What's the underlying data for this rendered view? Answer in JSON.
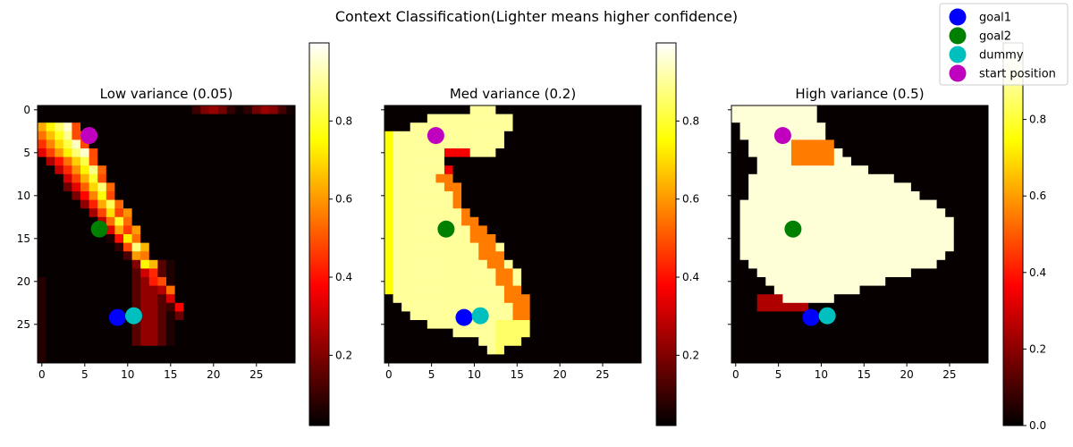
{
  "figure": {
    "suptitle": "Context Classification(Lighter means higher confidence)"
  },
  "legend": {
    "placement": "top-right",
    "entries": [
      {
        "label": "goal1",
        "color": "#0000ff"
      },
      {
        "label": "goal2",
        "color": "#008000"
      },
      {
        "label": "dummy",
        "color": "#00bfbf"
      },
      {
        "label": "start position",
        "color": "#bf00bf"
      }
    ]
  },
  "chart_data": [
    {
      "type": "heatmap",
      "title": "Low variance (0.05)",
      "colormap": "hot",
      "grid_size": [
        30,
        30
      ],
      "xlim": [
        0,
        29
      ],
      "ylim": [
        0,
        29
      ],
      "y_inverted": true,
      "x_ticks": [
        0,
        5,
        10,
        15,
        20,
        25
      ],
      "y_ticks": [
        0,
        5,
        10,
        15,
        20,
        25
      ],
      "colorbar": {
        "ticks": [
          0.2,
          0.4,
          0.6,
          0.8
        ],
        "range": [
          0.02,
          1.0
        ]
      },
      "markers": [
        {
          "name": "start position",
          "x": 5.5,
          "y": 3.0,
          "color": "#bf00bf"
        },
        {
          "name": "goal2",
          "x": 6.7,
          "y": 13.9,
          "color": "#008000"
        },
        {
          "name": "goal1",
          "x": 8.8,
          "y": 24.2,
          "color": "#0000ff"
        },
        {
          "name": "dummy",
          "x": 10.7,
          "y": 24.0,
          "color": "#00bfbf"
        }
      ]
    },
    {
      "type": "heatmap",
      "title": "Med variance (0.2)",
      "colormap": "hot",
      "grid_size": [
        30,
        30
      ],
      "xlim": [
        0,
        29
      ],
      "ylim": [
        0,
        29
      ],
      "y_inverted": true,
      "x_ticks": [
        0,
        5,
        10,
        15,
        20,
        25
      ],
      "y_ticks": [
        0,
        5,
        10,
        15,
        20,
        25
      ],
      "colorbar": {
        "ticks": [
          0.2,
          0.4,
          0.6,
          0.8
        ],
        "range": [
          0.02,
          1.0
        ]
      },
      "markers": [
        {
          "name": "start position",
          "x": 5.5,
          "y": 3.0,
          "color": "#bf00bf"
        },
        {
          "name": "goal2",
          "x": 6.7,
          "y": 13.9,
          "color": "#008000"
        },
        {
          "name": "goal1",
          "x": 8.8,
          "y": 24.2,
          "color": "#0000ff"
        },
        {
          "name": "dummy",
          "x": 10.7,
          "y": 24.0,
          "color": "#00bfbf"
        }
      ]
    },
    {
      "type": "heatmap",
      "title": "High variance (0.5)",
      "colormap": "hot",
      "grid_size": [
        30,
        30
      ],
      "xlim": [
        0,
        29
      ],
      "ylim": [
        0,
        29
      ],
      "y_inverted": true,
      "x_ticks": [
        0,
        5,
        10,
        15,
        20,
        25
      ],
      "y_ticks": [
        0,
        5,
        10,
        15,
        20,
        25
      ],
      "colorbar": {
        "ticks": [
          0.0,
          0.2,
          0.4,
          0.6,
          0.8
        ],
        "range": [
          0.0,
          1.0
        ]
      },
      "markers": [
        {
          "name": "start position",
          "x": 5.5,
          "y": 3.0,
          "color": "#bf00bf"
        },
        {
          "name": "goal2",
          "x": 6.7,
          "y": 13.9,
          "color": "#008000"
        },
        {
          "name": "goal1",
          "x": 8.8,
          "y": 24.2,
          "color": "#0000ff"
        },
        {
          "name": "dummy",
          "x": 10.7,
          "y": 24.0,
          "color": "#00bfbf"
        }
      ]
    }
  ]
}
